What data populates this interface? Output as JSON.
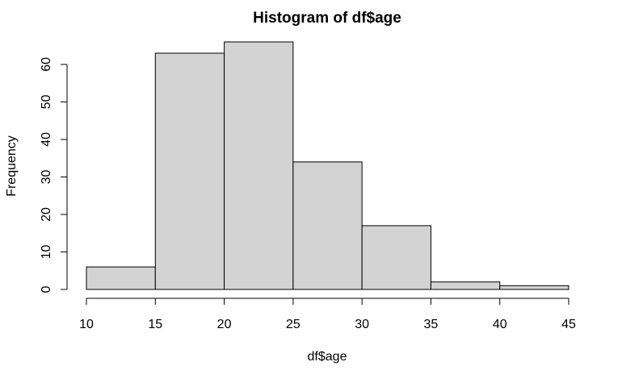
{
  "chart_data": {
    "type": "bar",
    "title": "Histogram of df$age",
    "xlabel": "df$age",
    "ylabel": "Frequency",
    "bin_edges": [
      10,
      15,
      20,
      25,
      30,
      35,
      40,
      45
    ],
    "values": [
      6,
      63,
      66,
      34,
      17,
      2,
      1
    ],
    "xlim": [
      10,
      45
    ],
    "ylim": [
      0,
      66
    ],
    "x_ticks": [
      10,
      15,
      20,
      25,
      30,
      35,
      40,
      45
    ],
    "y_ticks": [
      0,
      10,
      20,
      30,
      40,
      50,
      60
    ],
    "bar_color": "#d3d3d3",
    "bar_edge_color": "#000000",
    "grid": false
  }
}
